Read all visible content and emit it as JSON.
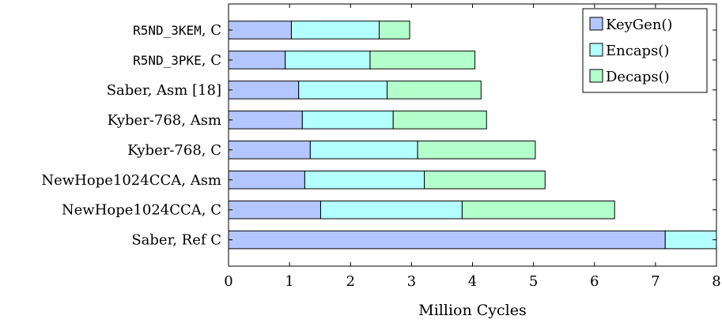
{
  "chart_data": {
    "type": "bar",
    "orientation": "horizontal",
    "stacked": true,
    "title": "",
    "xlabel": "Million Cycles",
    "ylabel": "",
    "xlim": [
      0,
      8
    ],
    "xticks": [
      0,
      1,
      2,
      3,
      4,
      5,
      6,
      7,
      8
    ],
    "grid": false,
    "legend_position": "top-right",
    "categories": [
      "R5ND_3KEM, C",
      "R5ND_3PKE, C",
      "Saber, Asm [18]",
      "Kyber-768, Asm",
      "Kyber-768, C",
      "NewHope1024CCA, Asm",
      "NewHope1024CCA, C",
      "Saber, Ref C"
    ],
    "series": [
      {
        "name": "KeyGen()",
        "color": "#b3c6ff",
        "values": [
          1.03,
          0.93,
          1.15,
          1.21,
          1.34,
          1.25,
          1.51,
          7.16
        ]
      },
      {
        "name": "Encaps()",
        "color": "#b3ffff",
        "values": [
          1.44,
          1.39,
          1.45,
          1.49,
          1.76,
          1.96,
          2.32,
          0.84
        ]
      },
      {
        "name": "Decaps()",
        "color": "#b3ffcc",
        "values": [
          0.5,
          1.72,
          1.54,
          1.53,
          1.93,
          1.98,
          2.5,
          0.0
        ]
      }
    ]
  }
}
